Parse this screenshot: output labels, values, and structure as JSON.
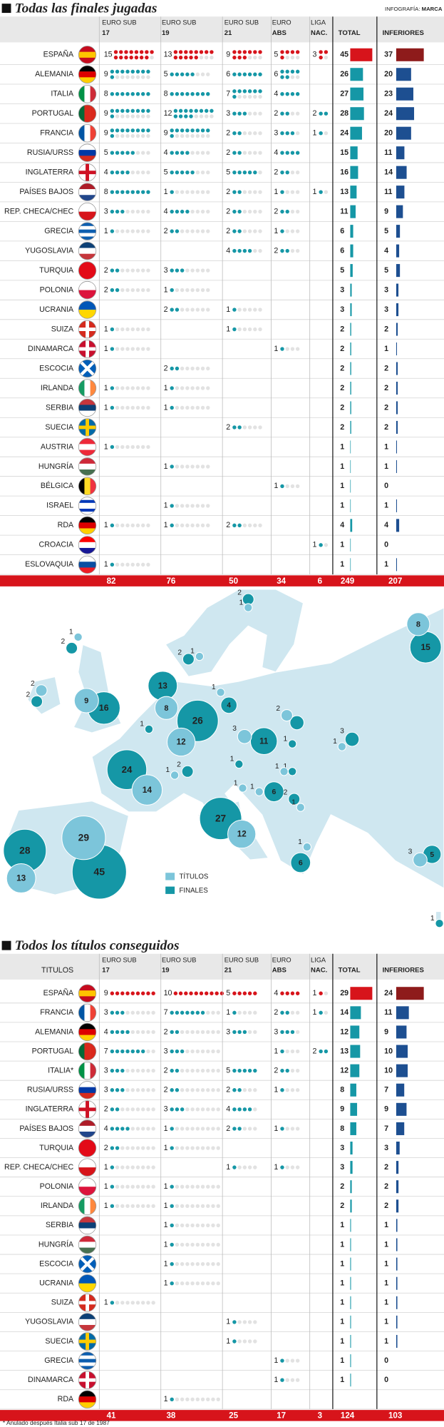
{
  "header": {
    "credit_label": "INFOGRAFÍA:",
    "credit_name": "MARCA"
  },
  "columns": [
    {
      "top": "EURO SUB",
      "bottom": "17"
    },
    {
      "top": "EURO SUB",
      "bottom": "19"
    },
    {
      "top": "EURO SUB",
      "bottom": "21"
    },
    {
      "top": "EURO",
      "bottom": "ABS"
    },
    {
      "top": "LIGA",
      "bottom": "NAC."
    }
  ],
  "total_label": "TOTAL",
  "inferiores_label": "INFERIORES",
  "colors": {
    "dots": "#1597a6",
    "leader_dots": "#d7141b",
    "empty_dots": "#e2e2e2",
    "total": "#1597a6",
    "inferiores": "#1d4f91",
    "leader_total": "#d7141b",
    "leader_inferiores": "#8e1b1b",
    "totals_bar": "#d7141b"
  },
  "finals": {
    "title": "Todas las finales jugadas",
    "rows": [
      {
        "country": "ESPAÑA",
        "values": [
          15,
          13,
          9,
          5,
          3
        ],
        "total": 45,
        "inferiores": 37
      },
      {
        "country": "ALEMANIA",
        "values": [
          9,
          5,
          6,
          6,
          null
        ],
        "total": 26,
        "inferiores": 20
      },
      {
        "country": "ITALIA",
        "values": [
          8,
          8,
          7,
          4,
          null
        ],
        "total": 27,
        "inferiores": 23
      },
      {
        "country": "PORTUGAL",
        "values": [
          9,
          12,
          3,
          2,
          2
        ],
        "total": 28,
        "inferiores": 24
      },
      {
        "country": "FRANCIA",
        "values": [
          9,
          9,
          2,
          3,
          1
        ],
        "total": 24,
        "inferiores": 20
      },
      {
        "country": "RUSIA/URSS",
        "values": [
          5,
          4,
          2,
          4,
          null
        ],
        "total": 15,
        "inferiores": 11
      },
      {
        "country": "INGLATERRA",
        "values": [
          4,
          5,
          5,
          2,
          null
        ],
        "total": 16,
        "inferiores": 14
      },
      {
        "country": "PAÍSES BAJOS",
        "values": [
          8,
          1,
          2,
          1,
          1
        ],
        "total": 13,
        "inferiores": 11
      },
      {
        "country": "REP. CHECA/CHEC",
        "values": [
          3,
          4,
          2,
          2,
          null
        ],
        "total": 11,
        "inferiores": 9
      },
      {
        "country": "GRECIA",
        "values": [
          1,
          2,
          2,
          1,
          null
        ],
        "total": 6,
        "inferiores": 5
      },
      {
        "country": "YUGOSLAVIA",
        "values": [
          null,
          null,
          4,
          2,
          null
        ],
        "total": 6,
        "inferiores": 4
      },
      {
        "country": "TURQUIA",
        "values": [
          2,
          3,
          null,
          null,
          null
        ],
        "total": 5,
        "inferiores": 5
      },
      {
        "country": "POLONIA",
        "values": [
          2,
          1,
          null,
          null,
          null
        ],
        "total": 3,
        "inferiores": 3
      },
      {
        "country": "UCRANIA",
        "values": [
          null,
          2,
          1,
          null,
          null
        ],
        "total": 3,
        "inferiores": 3
      },
      {
        "country": "SUIZA",
        "values": [
          1,
          null,
          1,
          null,
          null
        ],
        "total": 2,
        "inferiores": 2
      },
      {
        "country": "DINAMARCA",
        "values": [
          1,
          null,
          null,
          1,
          null
        ],
        "total": 2,
        "inferiores": 1
      },
      {
        "country": "ESCOCIA",
        "values": [
          null,
          2,
          null,
          null,
          null
        ],
        "total": 2,
        "inferiores": 2
      },
      {
        "country": "IRLANDA",
        "values": [
          1,
          1,
          null,
          null,
          null
        ],
        "total": 2,
        "inferiores": 2
      },
      {
        "country": "SERBIA",
        "values": [
          1,
          1,
          null,
          null,
          null
        ],
        "total": 2,
        "inferiores": 2
      },
      {
        "country": "SUECIA",
        "values": [
          null,
          null,
          2,
          null,
          null
        ],
        "total": 2,
        "inferiores": 2
      },
      {
        "country": "AUSTRIA",
        "values": [
          1,
          null,
          null,
          null,
          null
        ],
        "total": 1,
        "inferiores": 1
      },
      {
        "country": "HUNGRÍA",
        "values": [
          null,
          1,
          null,
          null,
          null
        ],
        "total": 1,
        "inferiores": 1
      },
      {
        "country": "BÉLGICA",
        "values": [
          null,
          null,
          null,
          1,
          null
        ],
        "total": 1,
        "inferiores": 0
      },
      {
        "country": "ISRAEL",
        "values": [
          null,
          1,
          null,
          null,
          null
        ],
        "total": 1,
        "inferiores": 1
      },
      {
        "country": "RDA",
        "values": [
          1,
          1,
          2,
          null,
          null
        ],
        "total": 4,
        "inferiores": 4
      },
      {
        "country": "CROACIA",
        "values": [
          null,
          null,
          null,
          null,
          1
        ],
        "total": 1,
        "inferiores": 0
      },
      {
        "country": "ESLOVAQUIA",
        "values": [
          1,
          null,
          null,
          null,
          null
        ],
        "total": 1,
        "inferiores": 1
      }
    ],
    "totals": [
      82,
      76,
      50,
      34,
      6
    ],
    "total": 249,
    "inferiores": 207
  },
  "map": {
    "legend_titles": "TÍTULOS",
    "legend_finals": "FINALES",
    "colors": {
      "titles": "#7cc5da",
      "finals": "#1597a6",
      "land": "#cfe7f0"
    },
    "titles": [
      8,
      1,
      1,
      2,
      9,
      8,
      1,
      12,
      1,
      2,
      3,
      1,
      14,
      1,
      1,
      1,
      12,
      1,
      3,
      13,
      29,
      1,
      1
    ],
    "finals": [
      15,
      3,
      2,
      2,
      16,
      13,
      2,
      26,
      4,
      3,
      11,
      1,
      2,
      1,
      1,
      1,
      24,
      6,
      2,
      27,
      6,
      5,
      1,
      28,
      45,
      2
    ]
  },
  "titles": {
    "title": "Todos los títulos conseguidos",
    "first_header": "TITULOS",
    "rows": [
      {
        "country": "ESPAÑA",
        "values": [
          9,
          10,
          5,
          4,
          1
        ],
        "total": 29,
        "inferiores": 24
      },
      {
        "country": "FRANCIA",
        "values": [
          3,
          7,
          1,
          2,
          1
        ],
        "total": 14,
        "inferiores": 11
      },
      {
        "country": "ALEMANIA",
        "values": [
          4,
          2,
          3,
          3,
          null
        ],
        "total": 12,
        "inferiores": 9
      },
      {
        "country": "PORTUGAL",
        "values": [
          7,
          3,
          null,
          1,
          2
        ],
        "total": 13,
        "inferiores": 10
      },
      {
        "country": "ITALIA*",
        "values": [
          3,
          2,
          5,
          2,
          null
        ],
        "total": 12,
        "inferiores": 10
      },
      {
        "country": "RUSIA/URSS",
        "values": [
          3,
          2,
          2,
          1,
          null
        ],
        "total": 8,
        "inferiores": 7
      },
      {
        "country": "INGLATERRA",
        "values": [
          2,
          3,
          4,
          null,
          null
        ],
        "total": 9,
        "inferiores": 9
      },
      {
        "country": "PAÍSES BAJOS",
        "values": [
          4,
          1,
          2,
          1,
          null
        ],
        "total": 8,
        "inferiores": 7
      },
      {
        "country": "TURQUIA",
        "values": [
          2,
          1,
          null,
          null,
          null
        ],
        "total": 3,
        "inferiores": 3
      },
      {
        "country": "REP. CHECA/CHEC",
        "values": [
          1,
          null,
          1,
          1,
          null
        ],
        "total": 3,
        "inferiores": 2
      },
      {
        "country": "POLONIA",
        "values": [
          1,
          1,
          null,
          null,
          null
        ],
        "total": 2,
        "inferiores": 2
      },
      {
        "country": "IRLANDA",
        "values": [
          1,
          1,
          null,
          null,
          null
        ],
        "total": 2,
        "inferiores": 2
      },
      {
        "country": "SERBIA",
        "values": [
          null,
          1,
          null,
          null,
          null
        ],
        "total": 1,
        "inferiores": 1
      },
      {
        "country": "HUNGRÍA",
        "values": [
          null,
          1,
          null,
          null,
          null
        ],
        "total": 1,
        "inferiores": 1
      },
      {
        "country": "ESCOCIA",
        "values": [
          null,
          1,
          null,
          null,
          null
        ],
        "total": 1,
        "inferiores": 1
      },
      {
        "country": "UCRANIA",
        "values": [
          null,
          1,
          null,
          null,
          null
        ],
        "total": 1,
        "inferiores": 1
      },
      {
        "country": "SUIZA",
        "values": [
          1,
          null,
          null,
          null,
          null
        ],
        "total": 1,
        "inferiores": 1
      },
      {
        "country": "YUGOSLAVIA",
        "values": [
          null,
          null,
          1,
          null,
          null
        ],
        "total": 1,
        "inferiores": 1
      },
      {
        "country": "SUECIA",
        "values": [
          null,
          null,
          1,
          null,
          null
        ],
        "total": 1,
        "inferiores": 1
      },
      {
        "country": "GRECIA",
        "values": [
          null,
          null,
          null,
          1,
          null
        ],
        "total": 1,
        "inferiores": 0
      },
      {
        "country": "DINAMARCA",
        "values": [
          null,
          null,
          null,
          1,
          null
        ],
        "total": 1,
        "inferiores": 0
      },
      {
        "country": "RDA",
        "values": [
          null,
          1,
          null,
          null,
          null
        ],
        "total": null,
        "inferiores": null
      }
    ],
    "totals": [
      41,
      38,
      25,
      17,
      3
    ],
    "total": 124,
    "inferiores": 103,
    "footnote": "* Anulado después Italia sub 17 de 1987"
  }
}
